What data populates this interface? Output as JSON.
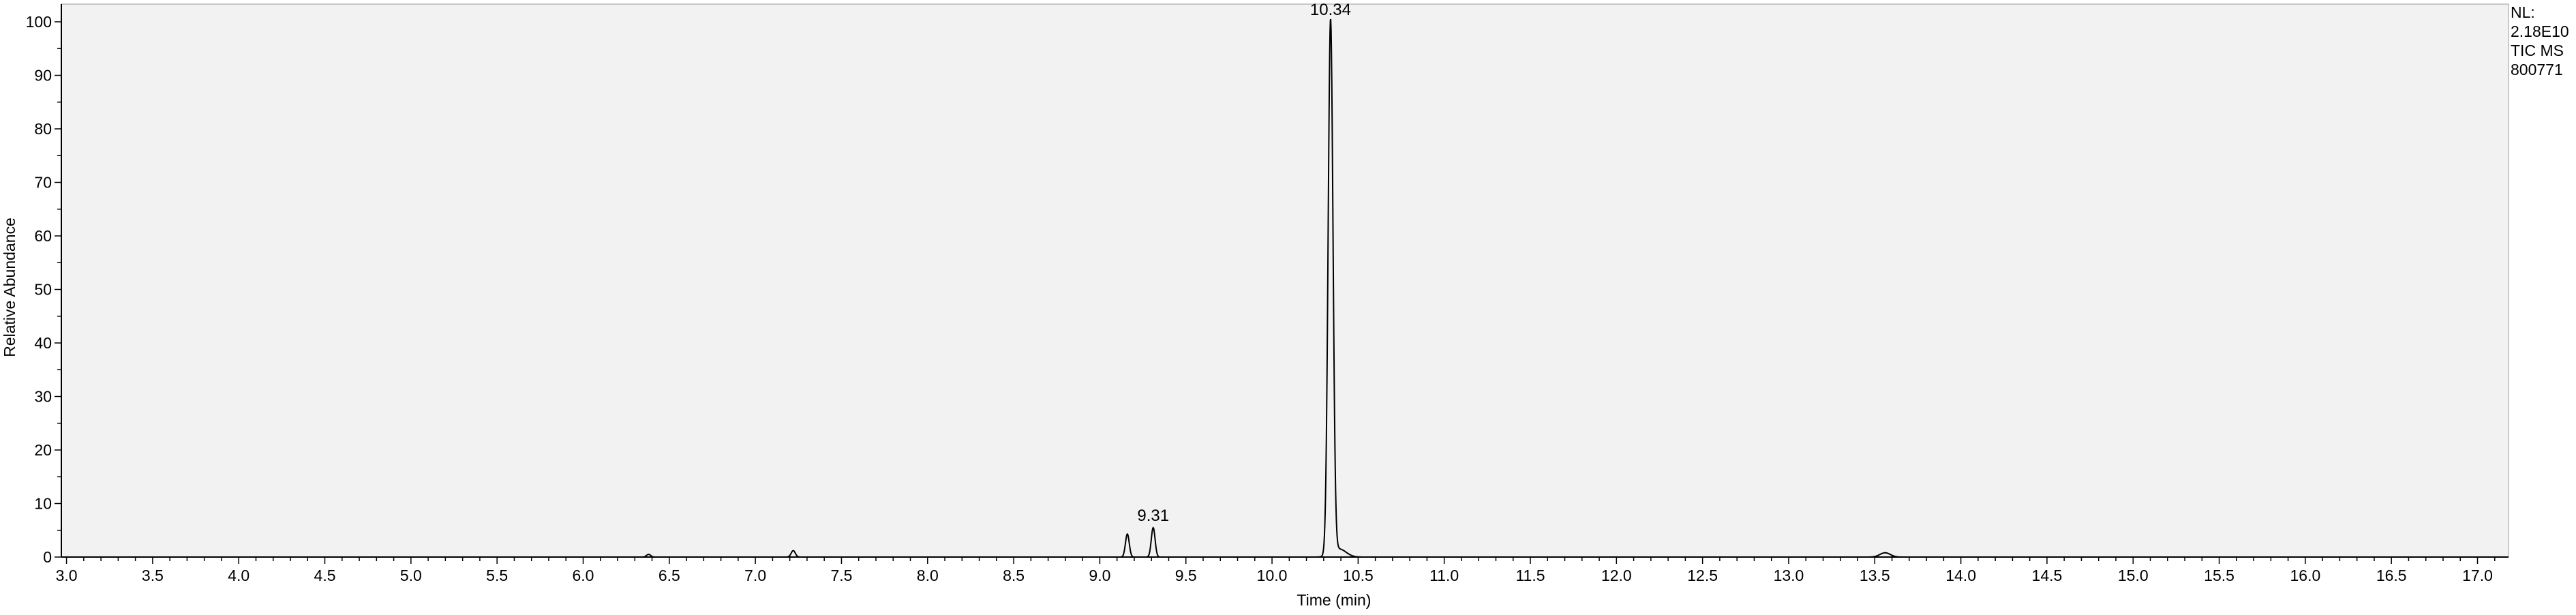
{
  "info": {
    "line1": "NL:",
    "line2": "2.18E10",
    "line3": "TIC  MS",
    "line4": "800771"
  },
  "chart_data": {
    "type": "line",
    "title": "",
    "xlabel": "Time (min)",
    "ylabel": "Relative Abundance",
    "xlim": [
      2.97,
      17.18
    ],
    "ylim": [
      0,
      100
    ],
    "x_ticks": [
      "3.0",
      "3.5",
      "4.0",
      "4.5",
      "5.0",
      "5.5",
      "6.0",
      "6.5",
      "7.0",
      "7.5",
      "8.0",
      "8.5",
      "9.0",
      "9.5",
      "10.0",
      "10.5",
      "11.0",
      "11.5",
      "12.0",
      "12.5",
      "13.0",
      "13.5",
      "14.0",
      "14.5",
      "15.0",
      "15.5",
      "16.0",
      "16.5",
      "17.0"
    ],
    "y_ticks": [
      "0",
      "10",
      "20",
      "30",
      "40",
      "50",
      "60",
      "70",
      "80",
      "90",
      "100"
    ],
    "background": "#f2f2f2",
    "line_color": "#000000",
    "grid": false,
    "series": [
      {
        "baseline": 0,
        "peaks": [
          {
            "rt": 6.38,
            "height": 0.5,
            "width": 0.012
          },
          {
            "rt": 7.22,
            "height": 1.2,
            "width": 0.012
          },
          {
            "rt": 9.16,
            "height": 4.3,
            "width": 0.011
          },
          {
            "rt": 9.31,
            "height": 5.5,
            "width": 0.011
          },
          {
            "rt": 10.34,
            "height": 100,
            "width": 0.014
          },
          {
            "rt": 10.39,
            "height": 1.5,
            "width": 0.04
          },
          {
            "rt": 13.56,
            "height": 0.8,
            "width": 0.03
          }
        ]
      }
    ],
    "annotations": [
      {
        "text": "10.34",
        "x": 10.34,
        "y": 100
      },
      {
        "text": "9.31",
        "x": 9.31,
        "y": 5.5
      }
    ]
  }
}
